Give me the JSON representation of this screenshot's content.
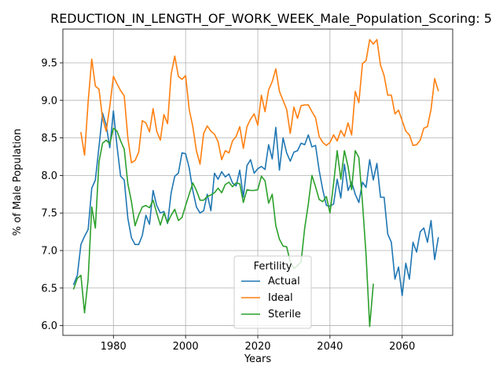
{
  "chart_data": {
    "type": "line",
    "title": "REDUCTION_IN_LENGTH_OF_WORK_WEEK_Male_Population_Scoring: 5",
    "xlabel": "Years",
    "ylabel": "% of Male Population",
    "xlim": [
      1966,
      2074
    ],
    "ylim": [
      5.87,
      9.95
    ],
    "xticks": [
      1980,
      2000,
      2020,
      2040,
      2060
    ],
    "yticks": [
      6.0,
      6.5,
      7.0,
      7.5,
      8.0,
      8.5,
      9.0,
      9.5
    ],
    "grid": true,
    "legend": {
      "title": "Fertility",
      "placement": "lower-center"
    },
    "series": [
      {
        "name": "Actual",
        "color": "#1f77b4",
        "points": [
          [
            1969,
            6.55
          ],
          [
            1970,
            6.67
          ],
          [
            1971,
            7.08
          ],
          [
            1972,
            7.19
          ],
          [
            1973,
            7.28
          ],
          [
            1974,
            7.83
          ],
          [
            1975,
            7.94
          ],
          [
            1976,
            8.38
          ],
          [
            1977,
            8.83
          ],
          [
            1978,
            8.67
          ],
          [
            1979,
            8.37
          ],
          [
            1980,
            8.86
          ],
          [
            1981,
            8.39
          ],
          [
            1982,
            7.99
          ],
          [
            1983,
            7.94
          ],
          [
            1984,
            7.43
          ],
          [
            1985,
            7.17
          ],
          [
            1986,
            7.08
          ],
          [
            1987,
            7.08
          ],
          [
            1988,
            7.2
          ],
          [
            1989,
            7.47
          ],
          [
            1990,
            7.35
          ],
          [
            1991,
            7.8
          ],
          [
            1992,
            7.6
          ],
          [
            1993,
            7.5
          ],
          [
            1994,
            7.52
          ],
          [
            1995,
            7.36
          ],
          [
            1996,
            7.77
          ],
          [
            1997,
            7.99
          ],
          [
            1998,
            8.03
          ],
          [
            1999,
            8.3
          ],
          [
            2000,
            8.29
          ],
          [
            2001,
            8.1
          ],
          [
            2002,
            7.8
          ],
          [
            2003,
            7.58
          ],
          [
            2004,
            7.5
          ],
          [
            2005,
            7.53
          ],
          [
            2006,
            7.75
          ],
          [
            2007,
            7.53
          ],
          [
            2008,
            8.03
          ],
          [
            2009,
            7.95
          ],
          [
            2010,
            8.05
          ],
          [
            2011,
            7.98
          ],
          [
            2012,
            8.02
          ],
          [
            2013,
            7.9
          ],
          [
            2014,
            7.86
          ],
          [
            2015,
            8.07
          ],
          [
            2016,
            7.71
          ],
          [
            2017,
            8.13
          ],
          [
            2018,
            8.21
          ],
          [
            2019,
            8.03
          ],
          [
            2020,
            8.09
          ],
          [
            2021,
            8.12
          ],
          [
            2022,
            8.08
          ],
          [
            2023,
            8.41
          ],
          [
            2024,
            8.22
          ],
          [
            2025,
            8.64
          ],
          [
            2026,
            8.07
          ],
          [
            2027,
            8.5
          ],
          [
            2028,
            8.3
          ],
          [
            2029,
            8.19
          ],
          [
            2030,
            8.31
          ],
          [
            2031,
            8.33
          ],
          [
            2032,
            8.43
          ],
          [
            2033,
            8.41
          ],
          [
            2034,
            8.54
          ],
          [
            2035,
            8.38
          ],
          [
            2036,
            8.4
          ],
          [
            2037,
            8.07
          ],
          [
            2038,
            7.81
          ],
          [
            2039,
            7.6
          ],
          [
            2040,
            7.59
          ],
          [
            2041,
            7.62
          ],
          [
            2042,
            7.95
          ],
          [
            2043,
            7.7
          ],
          [
            2044,
            8.15
          ],
          [
            2045,
            7.8
          ],
          [
            2046,
            7.91
          ],
          [
            2047,
            7.75
          ],
          [
            2048,
            7.64
          ],
          [
            2049,
            7.91
          ],
          [
            2050,
            7.84
          ],
          [
            2051,
            8.21
          ],
          [
            2052,
            7.94
          ],
          [
            2053,
            8.16
          ],
          [
            2054,
            7.71
          ],
          [
            2055,
            7.71
          ],
          [
            2056,
            7.22
          ],
          [
            2057,
            7.11
          ],
          [
            2058,
            6.62
          ],
          [
            2059,
            6.78
          ],
          [
            2060,
            6.4
          ],
          [
            2061,
            6.83
          ],
          [
            2062,
            6.62
          ],
          [
            2063,
            7.11
          ],
          [
            2064,
            6.98
          ],
          [
            2065,
            7.25
          ],
          [
            2066,
            7.3
          ],
          [
            2067,
            7.11
          ],
          [
            2068,
            7.4
          ],
          [
            2069,
            6.88
          ],
          [
            2070,
            7.17
          ]
        ]
      },
      {
        "name": "Ideal",
        "color": "#ff7f0e",
        "points": [
          [
            1971,
            8.57
          ],
          [
            1972,
            8.27
          ],
          [
            1973,
            8.98
          ],
          [
            1974,
            9.55
          ],
          [
            1975,
            9.19
          ],
          [
            1976,
            9.15
          ],
          [
            1977,
            8.76
          ],
          [
            1978,
            8.59
          ],
          [
            1979,
            8.92
          ],
          [
            1980,
            9.32
          ],
          [
            1981,
            9.22
          ],
          [
            1982,
            9.13
          ],
          [
            1983,
            9.06
          ],
          [
            1984,
            8.5
          ],
          [
            1985,
            8.17
          ],
          [
            1986,
            8.2
          ],
          [
            1987,
            8.31
          ],
          [
            1988,
            8.73
          ],
          [
            1989,
            8.7
          ],
          [
            1990,
            8.58
          ],
          [
            1991,
            8.89
          ],
          [
            1992,
            8.59
          ],
          [
            1993,
            8.47
          ],
          [
            1994,
            8.81
          ],
          [
            1995,
            8.69
          ],
          [
            1996,
            9.35
          ],
          [
            1997,
            9.59
          ],
          [
            1998,
            9.32
          ],
          [
            1999,
            9.28
          ],
          [
            2000,
            9.33
          ],
          [
            2001,
            8.88
          ],
          [
            2002,
            8.65
          ],
          [
            2003,
            8.33
          ],
          [
            2004,
            8.15
          ],
          [
            2005,
            8.56
          ],
          [
            2006,
            8.66
          ],
          [
            2007,
            8.59
          ],
          [
            2008,
            8.55
          ],
          [
            2009,
            8.45
          ],
          [
            2010,
            8.21
          ],
          [
            2011,
            8.33
          ],
          [
            2012,
            8.3
          ],
          [
            2013,
            8.46
          ],
          [
            2014,
            8.52
          ],
          [
            2015,
            8.65
          ],
          [
            2016,
            8.36
          ],
          [
            2017,
            8.65
          ],
          [
            2018,
            8.75
          ],
          [
            2019,
            8.82
          ],
          [
            2020,
            8.67
          ],
          [
            2021,
            9.07
          ],
          [
            2022,
            8.85
          ],
          [
            2023,
            9.14
          ],
          [
            2024,
            9.25
          ],
          [
            2025,
            9.42
          ],
          [
            2026,
            9.12
          ],
          [
            2027,
            9.0
          ],
          [
            2028,
            8.88
          ],
          [
            2029,
            8.56
          ],
          [
            2030,
            8.91
          ],
          [
            2031,
            8.76
          ],
          [
            2032,
            8.93
          ],
          [
            2033,
            8.94
          ],
          [
            2034,
            8.94
          ],
          [
            2035,
            8.85
          ],
          [
            2036,
            8.77
          ],
          [
            2037,
            8.52
          ],
          [
            2038,
            8.44
          ],
          [
            2039,
            8.4
          ],
          [
            2040,
            8.44
          ],
          [
            2041,
            8.54
          ],
          [
            2042,
            8.46
          ],
          [
            2043,
            8.6
          ],
          [
            2044,
            8.52
          ],
          [
            2045,
            8.7
          ],
          [
            2046,
            8.54
          ],
          [
            2047,
            9.12
          ],
          [
            2048,
            8.97
          ],
          [
            2049,
            9.49
          ],
          [
            2050,
            9.53
          ],
          [
            2051,
            9.81
          ],
          [
            2052,
            9.75
          ],
          [
            2053,
            9.81
          ],
          [
            2054,
            9.47
          ],
          [
            2055,
            9.33
          ],
          [
            2056,
            9.07
          ],
          [
            2057,
            9.07
          ],
          [
            2058,
            8.82
          ],
          [
            2059,
            8.87
          ],
          [
            2060,
            8.73
          ],
          [
            2061,
            8.59
          ],
          [
            2062,
            8.54
          ],
          [
            2063,
            8.4
          ],
          [
            2064,
            8.41
          ],
          [
            2065,
            8.47
          ],
          [
            2066,
            8.63
          ],
          [
            2067,
            8.65
          ],
          [
            2068,
            8.88
          ],
          [
            2069,
            9.29
          ],
          [
            2070,
            9.13
          ]
        ]
      },
      {
        "name": "Sterile",
        "color": "#2ca02c",
        "points": [
          [
            1969,
            6.49
          ],
          [
            1970,
            6.63
          ],
          [
            1971,
            6.67
          ],
          [
            1972,
            6.17
          ],
          [
            1973,
            6.62
          ],
          [
            1974,
            7.58
          ],
          [
            1975,
            7.3
          ],
          [
            1976,
            8.18
          ],
          [
            1977,
            8.43
          ],
          [
            1978,
            8.47
          ],
          [
            1979,
            8.42
          ],
          [
            1980,
            8.63
          ],
          [
            1981,
            8.59
          ],
          [
            1982,
            8.46
          ],
          [
            1983,
            8.35
          ],
          [
            1984,
            7.89
          ],
          [
            1985,
            7.65
          ],
          [
            1986,
            7.33
          ],
          [
            1987,
            7.47
          ],
          [
            1988,
            7.58
          ],
          [
            1989,
            7.6
          ],
          [
            1990,
            7.57
          ],
          [
            1991,
            7.67
          ],
          [
            1992,
            7.5
          ],
          [
            1993,
            7.34
          ],
          [
            1994,
            7.5
          ],
          [
            1995,
            7.37
          ],
          [
            1996,
            7.47
          ],
          [
            1997,
            7.55
          ],
          [
            1998,
            7.4
          ],
          [
            1999,
            7.44
          ],
          [
            2000,
            7.6
          ],
          [
            2001,
            7.75
          ],
          [
            2002,
            7.9
          ],
          [
            2003,
            7.8
          ],
          [
            2004,
            7.67
          ],
          [
            2005,
            7.67
          ],
          [
            2006,
            7.72
          ],
          [
            2007,
            7.74
          ],
          [
            2008,
            7.77
          ],
          [
            2009,
            7.83
          ],
          [
            2010,
            7.77
          ],
          [
            2011,
            7.88
          ],
          [
            2012,
            7.91
          ],
          [
            2013,
            7.85
          ],
          [
            2014,
            7.9
          ],
          [
            2015,
            7.89
          ],
          [
            2016,
            7.64
          ],
          [
            2017,
            7.81
          ],
          [
            2018,
            7.8
          ],
          [
            2019,
            7.8
          ],
          [
            2020,
            7.81
          ],
          [
            2021,
            7.99
          ],
          [
            2022,
            7.93
          ],
          [
            2023,
            7.63
          ],
          [
            2024,
            7.75
          ],
          [
            2025,
            7.33
          ],
          [
            2026,
            7.15
          ],
          [
            2027,
            7.06
          ],
          [
            2028,
            7.05
          ],
          [
            2029,
            6.85
          ],
          [
            2030,
            6.76
          ],
          [
            2031,
            6.8
          ],
          [
            2032,
            6.85
          ],
          [
            2033,
            7.3
          ],
          [
            2034,
            7.62
          ],
          [
            2035,
            8.0
          ],
          [
            2036,
            7.85
          ],
          [
            2037,
            7.68
          ],
          [
            2038,
            7.65
          ],
          [
            2039,
            7.72
          ],
          [
            2040,
            7.5
          ],
          [
            2041,
            7.89
          ],
          [
            2042,
            8.33
          ],
          [
            2043,
            7.95
          ],
          [
            2044,
            8.33
          ],
          [
            2045,
            8.12
          ],
          [
            2046,
            7.81
          ],
          [
            2047,
            8.33
          ],
          [
            2048,
            8.24
          ],
          [
            2049,
            7.64
          ],
          [
            2050,
            6.94
          ],
          [
            2051,
            5.99
          ],
          [
            2052,
            6.55
          ]
        ]
      }
    ]
  }
}
